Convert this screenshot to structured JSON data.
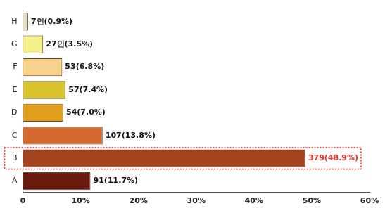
{
  "chart_data": {
    "type": "bar",
    "orientation": "horizontal",
    "categories": [
      "A",
      "B",
      "C",
      "D",
      "E",
      "F",
      "G",
      "H"
    ],
    "values": [
      11.7,
      48.9,
      13.8,
      7.0,
      7.4,
      6.8,
      3.5,
      0.9
    ],
    "value_labels": [
      "91(11.7%)",
      "379(48.9%)",
      "107(13.8%)",
      "54(7.0%)",
      "57(7.4%)",
      "53(6.8%)",
      "27인(3.5%)",
      "7인(0.9%)"
    ],
    "colors": [
      "#6b1a0e",
      "#a3431d",
      "#d3692e",
      "#e0a01e",
      "#d8c22a",
      "#f7d08a",
      "#f5f08a",
      "#e6dcc2"
    ],
    "data_labels": true,
    "grid": false,
    "xlim": [
      0,
      60
    ],
    "xticks": [
      {
        "value": 0,
        "label": "0"
      },
      {
        "value": 10,
        "label": "10%"
      },
      {
        "value": 20,
        "label": "20%"
      },
      {
        "value": 30,
        "label": "30%"
      },
      {
        "value": 40,
        "label": "40%"
      },
      {
        "value": 50,
        "label": "50%"
      },
      {
        "value": 60,
        "label": "60%"
      }
    ]
  }
}
